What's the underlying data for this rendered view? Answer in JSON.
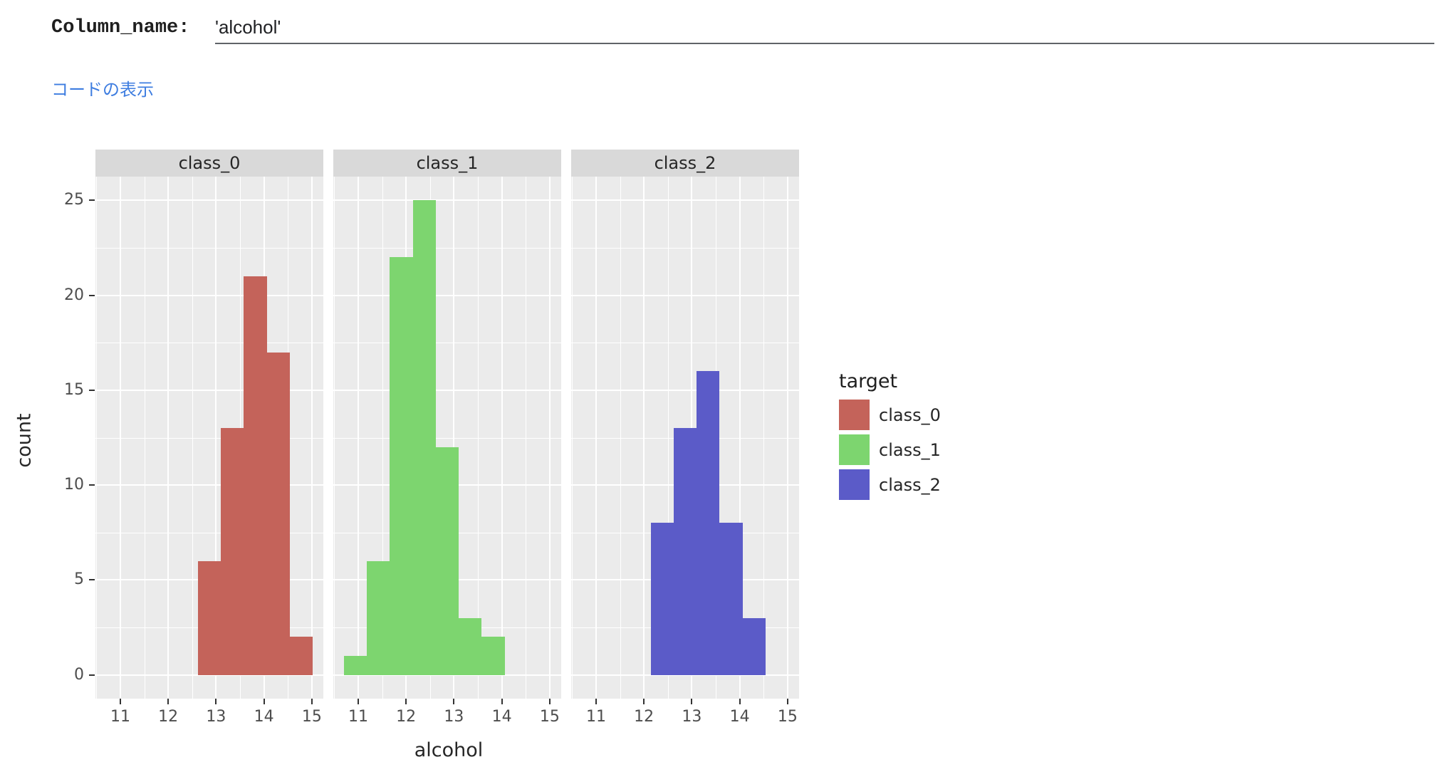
{
  "header": {
    "label": "Column_name:",
    "value": "'alcohol'"
  },
  "link": {
    "label": "コードの表示"
  },
  "chart_data": {
    "type": "bar",
    "subtype": "faceted-histogram",
    "xlabel": "alcohol",
    "ylabel": "count",
    "x_ticks": [
      11,
      12,
      13,
      14,
      15
    ],
    "y_ticks": [
      0,
      5,
      10,
      15,
      20,
      25
    ],
    "x_domain": [
      10.48,
      15.24
    ],
    "y_domain": [
      -1.25,
      26.25
    ],
    "bin_width": 0.48,
    "grid": "on",
    "panel_bg": "#ebebeb",
    "strip_bg": "#d9d9d9",
    "facets": [
      {
        "title": "class_0",
        "color": "#c4635a",
        "bin_start": 12.62,
        "counts": [
          6,
          13,
          21,
          17,
          2
        ]
      },
      {
        "title": "class_1",
        "color": "#7dd56f",
        "bin_start": 10.7,
        "counts": [
          1,
          6,
          22,
          25,
          12,
          3,
          2
        ]
      },
      {
        "title": "class_2",
        "color": "#5b5bc8",
        "bin_start": 12.14,
        "counts": [
          8,
          13,
          16,
          8,
          3
        ]
      }
    ],
    "legend": {
      "title": "target",
      "position": "right",
      "items": [
        {
          "label": "class_0",
          "color": "#c4635a"
        },
        {
          "label": "class_1",
          "color": "#7dd56f"
        },
        {
          "label": "class_2",
          "color": "#5b5bc8"
        }
      ]
    }
  }
}
